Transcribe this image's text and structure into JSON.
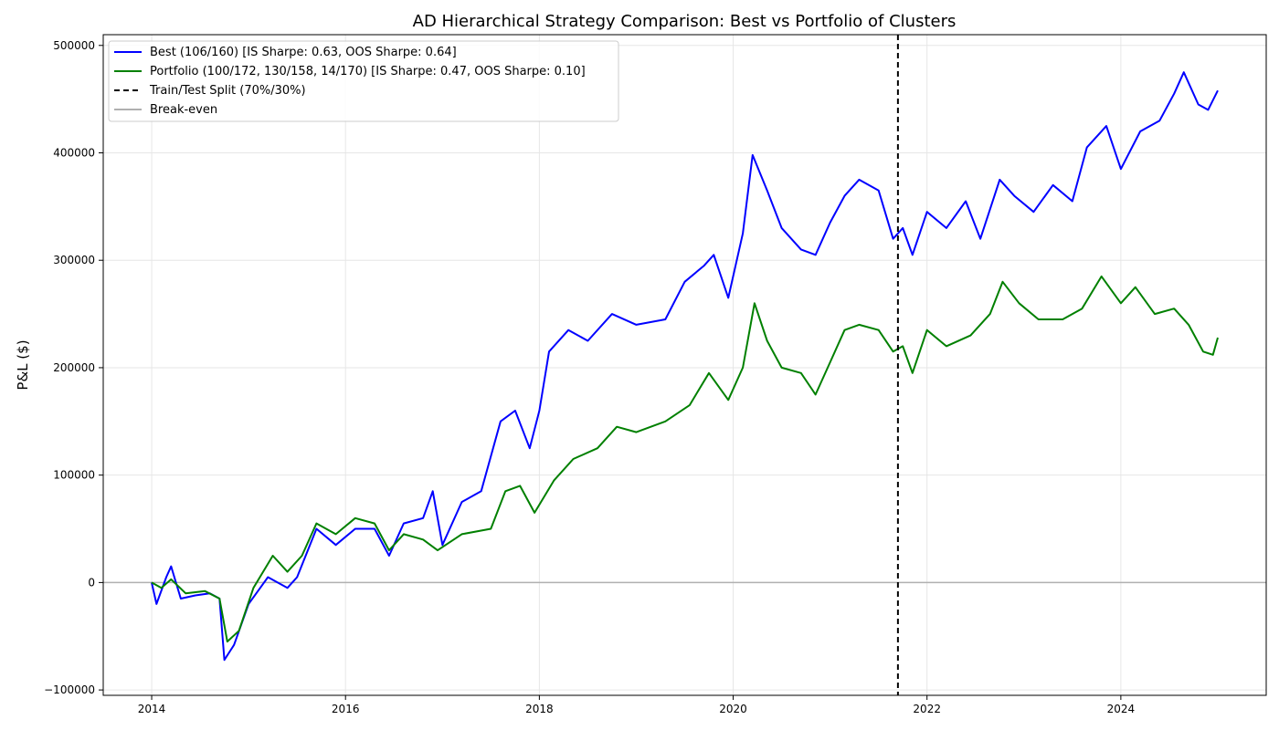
{
  "chart_data": {
    "type": "line",
    "title": "AD Hierarchical Strategy Comparison: Best vs Portfolio of Clusters",
    "xlabel": "",
    "ylabel": "P&L ($)",
    "xlim": [
      2013.5,
      2025.5
    ],
    "ylim": [
      -105000,
      510000
    ],
    "x_ticks": [
      2014,
      2016,
      2018,
      2020,
      2022,
      2024
    ],
    "x_tick_labels": [
      "2014",
      "2016",
      "2018",
      "2020",
      "2022",
      "2024"
    ],
    "y_ticks": [
      -100000,
      0,
      100000,
      200000,
      300000,
      400000,
      500000
    ],
    "y_tick_labels": [
      "−100000",
      "0",
      "100000",
      "200000",
      "300000",
      "400000",
      "500000"
    ],
    "grid": true,
    "legend_position": "upper-left",
    "split": {
      "x": 2021.7,
      "label": "Train/Test Split (70%/30%)",
      "color": "#000000",
      "style": "dashed"
    },
    "break_even": {
      "y": 0,
      "label": "Break-even",
      "color": "#b0b0b0"
    },
    "series": [
      {
        "name": "Best (106/160) [IS Sharpe: 0.63, OOS Sharpe: 0.64]",
        "color": "#0000ff",
        "points": [
          [
            2014.0,
            0
          ],
          [
            2014.05,
            -20000
          ],
          [
            2014.15,
            5000
          ],
          [
            2014.2,
            15000
          ],
          [
            2014.3,
            -15000
          ],
          [
            2014.45,
            -12000
          ],
          [
            2014.6,
            -10000
          ],
          [
            2014.7,
            -15000
          ],
          [
            2014.75,
            -72000
          ],
          [
            2014.85,
            -58000
          ],
          [
            2015.0,
            -20000
          ],
          [
            2015.2,
            5000
          ],
          [
            2015.4,
            -5000
          ],
          [
            2015.5,
            5000
          ],
          [
            2015.7,
            50000
          ],
          [
            2015.9,
            35000
          ],
          [
            2016.1,
            50000
          ],
          [
            2016.3,
            50000
          ],
          [
            2016.45,
            25000
          ],
          [
            2016.6,
            55000
          ],
          [
            2016.8,
            60000
          ],
          [
            2016.9,
            85000
          ],
          [
            2017.0,
            35000
          ],
          [
            2017.2,
            75000
          ],
          [
            2017.4,
            85000
          ],
          [
            2017.6,
            150000
          ],
          [
            2017.75,
            160000
          ],
          [
            2017.9,
            125000
          ],
          [
            2018.0,
            160000
          ],
          [
            2018.1,
            215000
          ],
          [
            2018.3,
            235000
          ],
          [
            2018.5,
            225000
          ],
          [
            2018.75,
            250000
          ],
          [
            2019.0,
            240000
          ],
          [
            2019.3,
            245000
          ],
          [
            2019.5,
            280000
          ],
          [
            2019.7,
            295000
          ],
          [
            2019.8,
            305000
          ],
          [
            2019.95,
            265000
          ],
          [
            2020.1,
            325000
          ],
          [
            2020.2,
            398000
          ],
          [
            2020.35,
            365000
          ],
          [
            2020.5,
            330000
          ],
          [
            2020.7,
            310000
          ],
          [
            2020.85,
            305000
          ],
          [
            2021.0,
            335000
          ],
          [
            2021.15,
            360000
          ],
          [
            2021.3,
            375000
          ],
          [
            2021.5,
            365000
          ],
          [
            2021.65,
            320000
          ],
          [
            2021.75,
            330000
          ],
          [
            2021.85,
            305000
          ],
          [
            2022.0,
            345000
          ],
          [
            2022.2,
            330000
          ],
          [
            2022.4,
            355000
          ],
          [
            2022.55,
            320000
          ],
          [
            2022.75,
            375000
          ],
          [
            2022.9,
            360000
          ],
          [
            2023.1,
            345000
          ],
          [
            2023.3,
            370000
          ],
          [
            2023.5,
            355000
          ],
          [
            2023.65,
            405000
          ],
          [
            2023.85,
            425000
          ],
          [
            2024.0,
            385000
          ],
          [
            2024.2,
            420000
          ],
          [
            2024.4,
            430000
          ],
          [
            2024.55,
            455000
          ],
          [
            2024.65,
            475000
          ],
          [
            2024.8,
            445000
          ],
          [
            2024.9,
            440000
          ],
          [
            2025.0,
            458000
          ]
        ]
      },
      {
        "name": "Portfolio (100/172, 130/158, 14/170) [IS Sharpe: 0.47, OOS Sharpe: 0.10]",
        "color": "#008000",
        "points": [
          [
            2014.0,
            0
          ],
          [
            2014.1,
            -5000
          ],
          [
            2014.2,
            3000
          ],
          [
            2014.35,
            -10000
          ],
          [
            2014.55,
            -8000
          ],
          [
            2014.7,
            -15000
          ],
          [
            2014.78,
            -55000
          ],
          [
            2014.9,
            -45000
          ],
          [
            2015.05,
            -5000
          ],
          [
            2015.25,
            25000
          ],
          [
            2015.4,
            10000
          ],
          [
            2015.55,
            25000
          ],
          [
            2015.7,
            55000
          ],
          [
            2015.9,
            45000
          ],
          [
            2016.1,
            60000
          ],
          [
            2016.3,
            55000
          ],
          [
            2016.45,
            30000
          ],
          [
            2016.6,
            45000
          ],
          [
            2016.8,
            40000
          ],
          [
            2016.95,
            30000
          ],
          [
            2017.2,
            45000
          ],
          [
            2017.5,
            50000
          ],
          [
            2017.65,
            85000
          ],
          [
            2017.8,
            90000
          ],
          [
            2017.95,
            65000
          ],
          [
            2018.15,
            95000
          ],
          [
            2018.35,
            115000
          ],
          [
            2018.6,
            125000
          ],
          [
            2018.8,
            145000
          ],
          [
            2019.0,
            140000
          ],
          [
            2019.3,
            150000
          ],
          [
            2019.55,
            165000
          ],
          [
            2019.75,
            195000
          ],
          [
            2019.95,
            170000
          ],
          [
            2020.1,
            200000
          ],
          [
            2020.22,
            260000
          ],
          [
            2020.35,
            225000
          ],
          [
            2020.5,
            200000
          ],
          [
            2020.7,
            195000
          ],
          [
            2020.85,
            175000
          ],
          [
            2021.0,
            205000
          ],
          [
            2021.15,
            235000
          ],
          [
            2021.3,
            240000
          ],
          [
            2021.5,
            235000
          ],
          [
            2021.65,
            215000
          ],
          [
            2021.75,
            220000
          ],
          [
            2021.85,
            195000
          ],
          [
            2022.0,
            235000
          ],
          [
            2022.2,
            220000
          ],
          [
            2022.45,
            230000
          ],
          [
            2022.65,
            250000
          ],
          [
            2022.78,
            280000
          ],
          [
            2022.95,
            260000
          ],
          [
            2023.15,
            245000
          ],
          [
            2023.4,
            245000
          ],
          [
            2023.6,
            255000
          ],
          [
            2023.8,
            285000
          ],
          [
            2024.0,
            260000
          ],
          [
            2024.15,
            275000
          ],
          [
            2024.35,
            250000
          ],
          [
            2024.55,
            255000
          ],
          [
            2024.7,
            240000
          ],
          [
            2024.85,
            215000
          ],
          [
            2024.95,
            212000
          ],
          [
            2025.0,
            228000
          ]
        ]
      }
    ]
  }
}
